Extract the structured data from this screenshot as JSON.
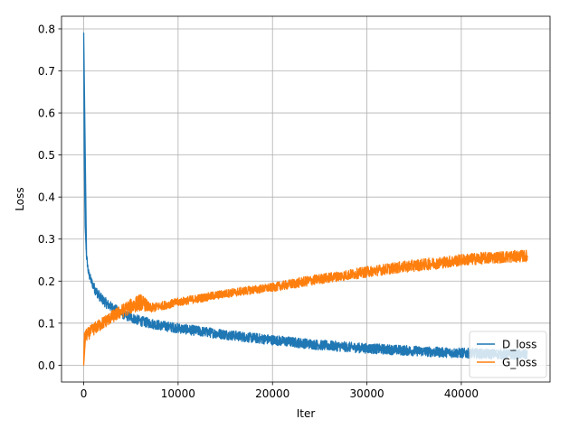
{
  "chart_data": {
    "type": "line",
    "title": "",
    "xlabel": "Iter",
    "ylabel": "Loss",
    "xlim": [
      -2350,
      49400
    ],
    "ylim": [
      -0.04,
      0.83
    ],
    "x_ticks": [
      0,
      10000,
      20000,
      30000,
      40000
    ],
    "x_tick_labels": [
      "0",
      "10000",
      "20000",
      "30000",
      "40000"
    ],
    "y_ticks": [
      0.0,
      0.1,
      0.2,
      0.3,
      0.4,
      0.5,
      0.6,
      0.7,
      0.8
    ],
    "y_tick_labels": [
      "0.0",
      "0.1",
      "0.2",
      "0.3",
      "0.4",
      "0.5",
      "0.6",
      "0.7",
      "0.8"
    ],
    "grid": true,
    "legend_position": "lower-right",
    "series": [
      {
        "name": "D_loss",
        "color": "#1f77b4",
        "x": [
          0,
          60,
          150,
          300,
          500,
          800,
          1200,
          1800,
          2500,
          3500,
          4500,
          6000,
          8000,
          10000,
          12500,
          15000,
          17500,
          20000,
          22500,
          25000,
          27500,
          30000,
          32500,
          35000,
          37500,
          40000,
          42500,
          45000,
          47000
        ],
        "y": [
          0.79,
          0.5,
          0.33,
          0.26,
          0.22,
          0.2,
          0.18,
          0.16,
          0.145,
          0.13,
          0.118,
          0.105,
          0.095,
          0.088,
          0.08,
          0.073,
          0.066,
          0.06,
          0.054,
          0.048,
          0.044,
          0.04,
          0.037,
          0.034,
          0.031,
          0.029,
          0.027,
          0.026,
          0.025
        ],
        "noise": [
          0,
          0.01,
          0.01,
          0.01,
          0.01,
          0.01,
          0.012,
          0.012,
          0.012,
          0.012,
          0.012,
          0.012,
          0.012,
          0.012,
          0.012,
          0.012,
          0.012,
          0.012,
          0.012,
          0.012,
          0.012,
          0.012,
          0.012,
          0.012,
          0.012,
          0.012,
          0.012,
          0.012,
          0.012
        ]
      },
      {
        "name": "G_loss",
        "color": "#ff7f0e",
        "x": [
          0,
          50,
          200,
          500,
          1000,
          2000,
          3000,
          4000,
          5000,
          6000,
          6500,
          7000,
          8000,
          10000,
          12500,
          15000,
          17500,
          20000,
          22500,
          25000,
          27500,
          30000,
          32500,
          35000,
          37500,
          40000,
          42500,
          45000,
          47000
        ],
        "y": [
          0.0,
          0.06,
          0.07,
          0.075,
          0.085,
          0.1,
          0.115,
          0.128,
          0.14,
          0.15,
          0.145,
          0.135,
          0.14,
          0.15,
          0.16,
          0.17,
          0.178,
          0.185,
          0.195,
          0.205,
          0.213,
          0.222,
          0.23,
          0.237,
          0.243,
          0.25,
          0.255,
          0.258,
          0.26
        ],
        "noise": [
          0,
          0.015,
          0.015,
          0.015,
          0.015,
          0.015,
          0.015,
          0.016,
          0.018,
          0.02,
          0.016,
          0.012,
          0.01,
          0.01,
          0.01,
          0.01,
          0.01,
          0.01,
          0.012,
          0.012,
          0.012,
          0.013,
          0.013,
          0.014,
          0.014,
          0.014,
          0.014,
          0.014,
          0.014
        ]
      }
    ]
  }
}
